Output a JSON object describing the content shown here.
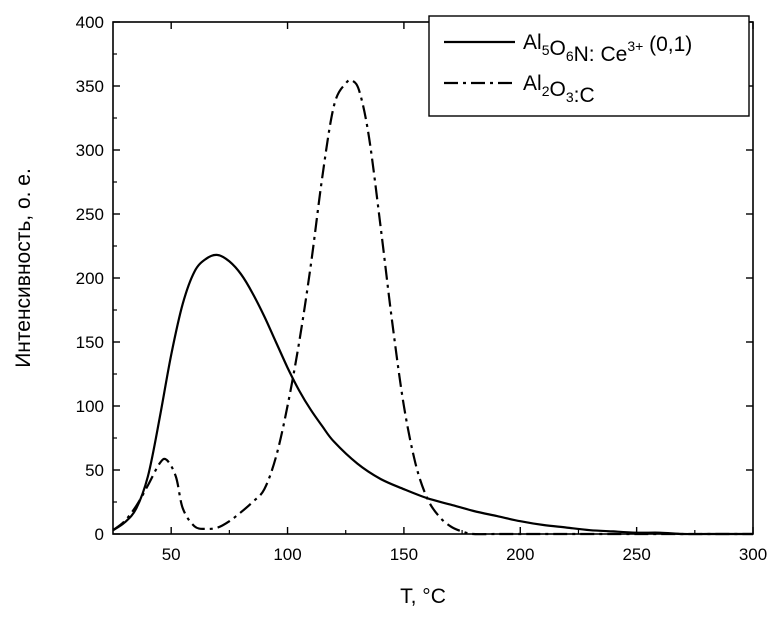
{
  "chart_data": {
    "type": "line",
    "title": "",
    "xlabel": "T, °C",
    "ylabel": "Интенсивность, о. е.",
    "xlim": [
      25,
      300
    ],
    "ylim": [
      0,
      400
    ],
    "x_ticks": [
      50,
      100,
      150,
      200,
      250,
      300
    ],
    "y_ticks": [
      0,
      50,
      100,
      150,
      200,
      250,
      300,
      350,
      400
    ],
    "x_tick_labels": [
      "50",
      "100",
      "150",
      "200",
      "250",
      "300"
    ],
    "y_tick_labels": [
      "0",
      "50",
      "100",
      "150",
      "200",
      "250",
      "300",
      "350",
      "400"
    ],
    "grid": false,
    "legend_position": "top-right",
    "series": [
      {
        "name": "Al5O6N: Ce3+ (0,1)",
        "line_style": "solid",
        "color": "#000000",
        "x": [
          25,
          30,
          35,
          40,
          45,
          50,
          55,
          60,
          65,
          70,
          75,
          80,
          85,
          90,
          95,
          100,
          105,
          110,
          115,
          120,
          130,
          140,
          150,
          160,
          170,
          180,
          190,
          200,
          210,
          220,
          230,
          240,
          250,
          260,
          270,
          280,
          290,
          300
        ],
        "y": [
          3,
          9,
          20,
          45,
          90,
          140,
          180,
          205,
          215,
          218,
          213,
          203,
          188,
          170,
          150,
          130,
          112,
          97,
          84,
          72,
          55,
          43,
          35,
          28,
          23,
          18,
          14,
          10,
          7,
          5,
          3,
          2,
          1,
          1,
          0,
          0,
          0,
          0
        ]
      },
      {
        "name": "Al2O3:C",
        "line_style": "dash-dot",
        "color": "#000000",
        "x": [
          25,
          30,
          35,
          40,
          45,
          48,
          52,
          55,
          60,
          65,
          70,
          75,
          80,
          85,
          90,
          95,
          100,
          105,
          110,
          115,
          120,
          125,
          128,
          131,
          135,
          140,
          145,
          150,
          155,
          160,
          165,
          170,
          175,
          180,
          190,
          200,
          250,
          300
        ],
        "y": [
          3,
          10,
          22,
          38,
          55,
          58,
          45,
          20,
          6,
          4,
          5,
          10,
          17,
          25,
          35,
          60,
          100,
          150,
          210,
          280,
          335,
          352,
          354,
          345,
          310,
          240,
          165,
          100,
          55,
          28,
          14,
          6,
          2,
          0,
          0,
          0,
          0,
          0
        ]
      }
    ],
    "legend": [
      {
        "main": "Al",
        "parts": [
          [
            "Al",
            ""
          ],
          [
            "5",
            "sub"
          ],
          [
            "O",
            ""
          ],
          [
            "6",
            "sub"
          ],
          [
            "N: Ce",
            ""
          ],
          [
            "3+",
            "sup"
          ],
          [
            " (0,1)",
            ""
          ]
        ]
      },
      {
        "main": "Al",
        "parts": [
          [
            "Al",
            ""
          ],
          [
            "2",
            "sub"
          ],
          [
            "O",
            ""
          ],
          [
            "3",
            "sub"
          ],
          [
            ":C",
            ""
          ]
        ]
      }
    ]
  }
}
